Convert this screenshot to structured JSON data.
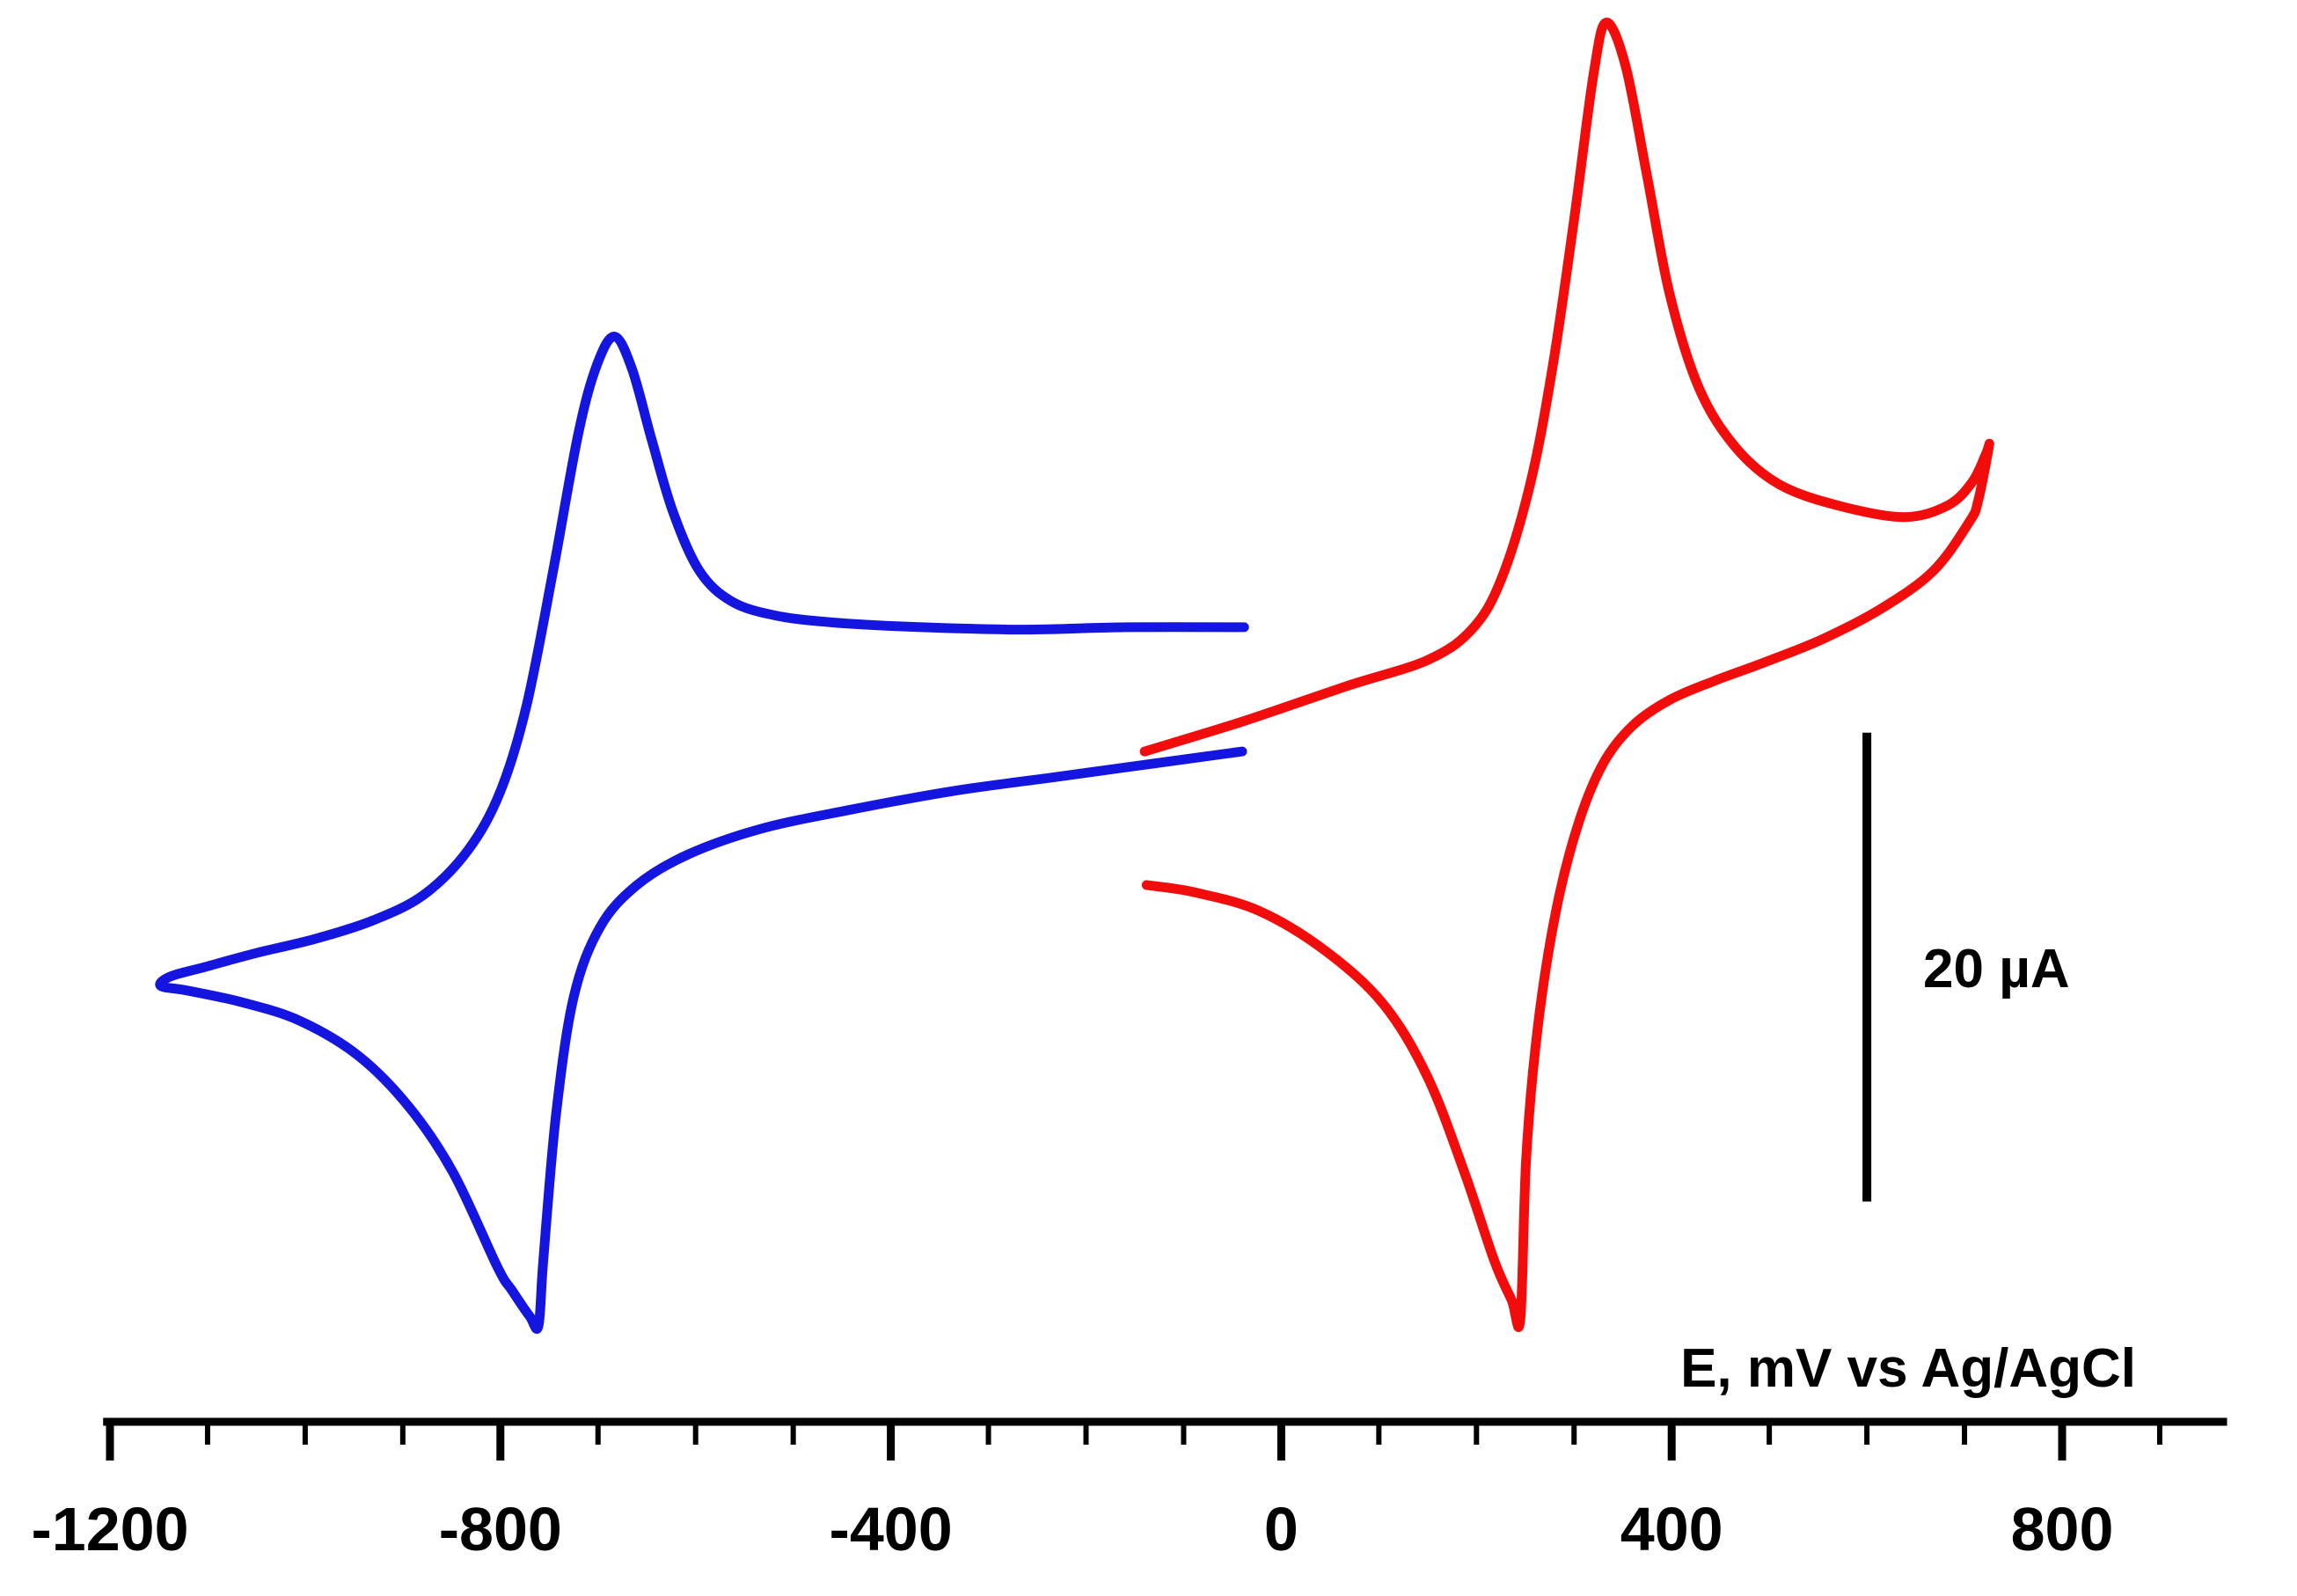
{
  "chart_data": {
    "type": "line",
    "title": "",
    "xlabel": "E, mV vs Ag/AgCl",
    "ylabel": "",
    "x_unit": "mV",
    "y_unit": "µA",
    "grid": false,
    "legend": false,
    "x_axis": {
      "tick_major": [
        -1200,
        -800,
        -400,
        0,
        400,
        800
      ],
      "minor_step_mV": 100,
      "minor_range_mV": [
        -1200,
        900
      ],
      "range_mV": [
        -1207,
        969
      ]
    },
    "y_axis": {
      "visible": false,
      "range_uA": [
        -7.4,
        60.6
      ]
    },
    "scale_bar": {
      "label": "20 µA",
      "value_uA": 20,
      "x_mV": 600,
      "top_uA": 29.4,
      "bottom_uA": 9.4
    },
    "series": [
      {
        "name": "blue-voltammogram",
        "color": "#1515E0",
        "anodic_peak_mV": -683,
        "anodic_peak_uA": 46.3,
        "cathodic_peak_mV": -761,
        "cathodic_peak_uA": 4.1,
        "points_mV_uA": [
          [
            -40,
            28.6
          ],
          [
            -128,
            28.1
          ],
          [
            -233,
            27.5
          ],
          [
            -338,
            26.9
          ],
          [
            -443,
            26.1
          ],
          [
            -533,
            25.3
          ],
          [
            -608,
            24.2
          ],
          [
            -660,
            22.9
          ],
          [
            -698,
            21.1
          ],
          [
            -725,
            18.1
          ],
          [
            -743,
            13.1
          ],
          [
            -756,
            6.9
          ],
          [
            -761,
            4.1
          ],
          [
            -770,
            4.5
          ],
          [
            -788,
            5.6
          ],
          [
            -803,
            6.6
          ],
          [
            -848,
            10.6
          ],
          [
            -893,
            13.4
          ],
          [
            -945,
            15.6
          ],
          [
            -1005,
            17.1
          ],
          [
            -1065,
            17.9
          ],
          [
            -1121,
            18.4
          ],
          [
            -1148,
            18.6
          ],
          [
            -1138,
            19.0
          ],
          [
            -1103,
            19.4
          ],
          [
            -1050,
            20.0
          ],
          [
            -990,
            20.6
          ],
          [
            -930,
            21.4
          ],
          [
            -878,
            22.5
          ],
          [
            -833,
            24.4
          ],
          [
            -800,
            26.9
          ],
          [
            -773,
            30.6
          ],
          [
            -746,
            36.3
          ],
          [
            -720,
            42.2
          ],
          [
            -701,
            45.1
          ],
          [
            -683,
            46.3
          ],
          [
            -665,
            44.9
          ],
          [
            -645,
            41.9
          ],
          [
            -623,
            38.8
          ],
          [
            -596,
            36.3
          ],
          [
            -563,
            35.0
          ],
          [
            -518,
            34.4
          ],
          [
            -458,
            34.1
          ],
          [
            -368,
            33.9
          ],
          [
            -263,
            33.8
          ],
          [
            -158,
            33.9
          ],
          [
            -38,
            33.9
          ]
        ]
      },
      {
        "name": "red-voltammogram",
        "color": "#F20D0D",
        "anodic_peak_mV": 333,
        "anodic_peak_uA": 59.7,
        "cathodic_peak_mV": 245,
        "cathodic_peak_uA": 4.4,
        "points_mV_uA": [
          [
            -140,
            28.6
          ],
          [
            -38,
            29.9
          ],
          [
            68,
            31.4
          ],
          [
            150,
            32.5
          ],
          [
            195,
            33.8
          ],
          [
            225,
            35.9
          ],
          [
            255,
            40.0
          ],
          [
            278,
            45.0
          ],
          [
            300,
            51.3
          ],
          [
            320,
            57.5
          ],
          [
            333,
            59.7
          ],
          [
            353,
            57.8
          ],
          [
            375,
            53.1
          ],
          [
            398,
            48.1
          ],
          [
            428,
            44.1
          ],
          [
            465,
            41.6
          ],
          [
            510,
            40.0
          ],
          [
            570,
            39.1
          ],
          [
            638,
            38.6
          ],
          [
            683,
            39.1
          ],
          [
            708,
            40.1
          ],
          [
            722,
            41.3
          ],
          [
            725,
            41.6
          ],
          [
            714,
            39.3
          ],
          [
            705,
            38.4
          ],
          [
            668,
            36.3
          ],
          [
            615,
            34.7
          ],
          [
            555,
            33.4
          ],
          [
            495,
            32.4
          ],
          [
            443,
            31.6
          ],
          [
            398,
            30.8
          ],
          [
            360,
            29.7
          ],
          [
            330,
            28.1
          ],
          [
            305,
            25.6
          ],
          [
            282,
            21.9
          ],
          [
            263,
            16.9
          ],
          [
            251,
            11.3
          ],
          [
            245,
            4.4
          ],
          [
            236,
            5.2
          ],
          [
            218,
            6.9
          ],
          [
            188,
            10.6
          ],
          [
            150,
            14.7
          ],
          [
            105,
            17.8
          ],
          [
            45,
            20.1
          ],
          [
            -23,
            21.8
          ],
          [
            -90,
            22.6
          ],
          [
            -138,
            22.9
          ]
        ]
      }
    ]
  }
}
